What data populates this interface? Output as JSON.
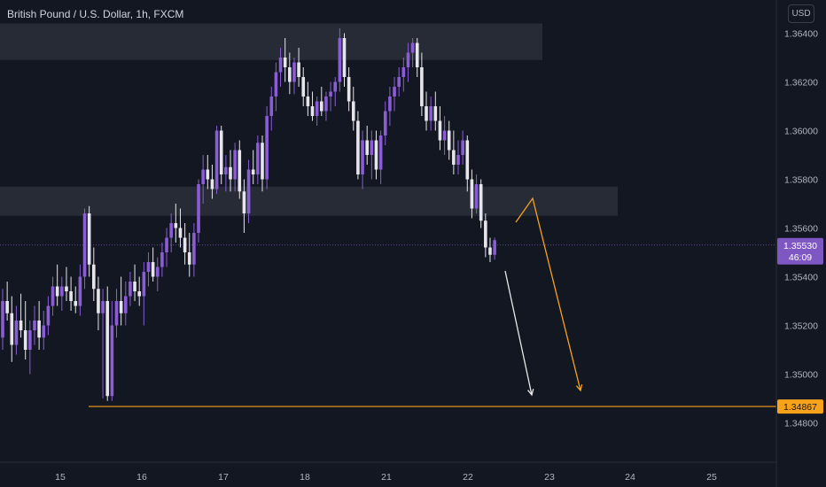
{
  "header": {
    "title": "British Pound / U.S. Dollar, 1h, FXCM",
    "currency": "USD"
  },
  "colors": {
    "background": "#131722",
    "bull": "#8a5cd6",
    "bear": "#e6e6ea",
    "zone": "#2a2e39",
    "target_line": "#f7a21b",
    "price_label": "#7e57c2",
    "white_arrow": "#e8e8e8",
    "orange_arrow": "#f7a21b"
  },
  "chart_data": {
    "type": "candlestick",
    "symbol": "British Pound / U.S. Dollar",
    "interval": "1h",
    "source": "FXCM",
    "y_ticks": [
      1.364,
      1.362,
      1.36,
      1.358,
      1.356,
      1.354,
      1.352,
      1.35,
      1.348
    ],
    "y_tick_labels": [
      "1.36400",
      "1.36200",
      "1.36000",
      "1.35800",
      "1.35600",
      "1.35400",
      "1.35200",
      "1.35000",
      "1.34800"
    ],
    "x_tick_labels": [
      "15",
      "16",
      "17",
      "18",
      "21",
      "22",
      "23",
      "24",
      "25"
    ],
    "current_price": {
      "price": 1.3553,
      "label": "1.35530",
      "countdown": "46:09"
    },
    "target_level": {
      "price": 1.34867,
      "label": "1.34867"
    },
    "zones": [
      {
        "name": "upper-resistance-zone",
        "from": 1.3629,
        "to": 1.3644
      },
      {
        "name": "lower-supply-zone",
        "from": 1.3565,
        "to": 1.3577
      }
    ],
    "candles": [
      [
        1.3515,
        1.3535,
        1.351,
        1.353
      ],
      [
        1.353,
        1.3538,
        1.3522,
        1.3525
      ],
      [
        1.3525,
        1.3532,
        1.3505,
        1.3512
      ],
      [
        1.3512,
        1.3528,
        1.3508,
        1.3522
      ],
      [
        1.3522,
        1.3533,
        1.3515,
        1.3518
      ],
      [
        1.3518,
        1.353,
        1.3506,
        1.351
      ],
      [
        1.351,
        1.3522,
        1.35,
        1.3518
      ],
      [
        1.3518,
        1.3528,
        1.3512,
        1.3522
      ],
      [
        1.3522,
        1.353,
        1.351,
        1.3515
      ],
      [
        1.3515,
        1.3526,
        1.351,
        1.352
      ],
      [
        1.352,
        1.3532,
        1.3516,
        1.3528
      ],
      [
        1.3528,
        1.354,
        1.3524,
        1.3536
      ],
      [
        1.3536,
        1.3545,
        1.3528,
        1.3532
      ],
      [
        1.3532,
        1.354,
        1.3526,
        1.3536
      ],
      [
        1.3536,
        1.3544,
        1.353,
        1.3534
      ],
      [
        1.3534,
        1.354,
        1.3526,
        1.353
      ],
      [
        1.353,
        1.3536,
        1.3525,
        1.3528
      ],
      [
        1.3528,
        1.3545,
        1.3524,
        1.354
      ],
      [
        1.354,
        1.3568,
        1.3535,
        1.3566
      ],
      [
        1.3566,
        1.3569,
        1.354,
        1.3545
      ],
      [
        1.3545,
        1.3552,
        1.353,
        1.3535
      ],
      [
        1.3535,
        1.354,
        1.3518,
        1.3525
      ],
      [
        1.3525,
        1.3535,
        1.349,
        1.353
      ],
      [
        1.353,
        1.3536,
        1.3489,
        1.3491
      ],
      [
        1.3491,
        1.353,
        1.3489,
        1.352
      ],
      [
        1.352,
        1.3535,
        1.3515,
        1.353
      ],
      [
        1.353,
        1.354,
        1.352,
        1.3525
      ],
      [
        1.3525,
        1.3538,
        1.352,
        1.3532
      ],
      [
        1.3532,
        1.3542,
        1.3528,
        1.3538
      ],
      [
        1.3538,
        1.3545,
        1.353,
        1.3534
      ],
      [
        1.3534,
        1.354,
        1.3528,
        1.3532
      ],
      [
        1.3532,
        1.3546,
        1.352,
        1.3542
      ],
      [
        1.3542,
        1.355,
        1.3536,
        1.3546
      ],
      [
        1.3546,
        1.3552,
        1.3538,
        1.354
      ],
      [
        1.354,
        1.3548,
        1.3534,
        1.3544
      ],
      [
        1.3544,
        1.3554,
        1.354,
        1.355
      ],
      [
        1.355,
        1.356,
        1.3544,
        1.3556
      ],
      [
        1.3556,
        1.3566,
        1.355,
        1.3562
      ],
      [
        1.3562,
        1.357,
        1.3554,
        1.356
      ],
      [
        1.356,
        1.3568,
        1.3552,
        1.3556
      ],
      [
        1.3556,
        1.3562,
        1.3545,
        1.355
      ],
      [
        1.355,
        1.3558,
        1.354,
        1.3545
      ],
      [
        1.3545,
        1.3562,
        1.354,
        1.3558
      ],
      [
        1.3558,
        1.358,
        1.3554,
        1.3578
      ],
      [
        1.3578,
        1.359,
        1.357,
        1.3584
      ],
      [
        1.3584,
        1.359,
        1.3576,
        1.358
      ],
      [
        1.358,
        1.3586,
        1.3572,
        1.3576
      ],
      [
        1.3576,
        1.3602,
        1.3574,
        1.36
      ],
      [
        1.36,
        1.3602,
        1.3578,
        1.3582
      ],
      [
        1.3582,
        1.359,
        1.3575,
        1.3585
      ],
      [
        1.3585,
        1.3592,
        1.3575,
        1.358
      ],
      [
        1.358,
        1.3595,
        1.3575,
        1.3592
      ],
      [
        1.3592,
        1.3596,
        1.3572,
        1.3575
      ],
      [
        1.3575,
        1.358,
        1.3558,
        1.3566
      ],
      [
        1.3566,
        1.3588,
        1.3562,
        1.3584
      ],
      [
        1.3584,
        1.3592,
        1.3578,
        1.3582
      ],
      [
        1.3582,
        1.3598,
        1.3578,
        1.3595
      ],
      [
        1.3595,
        1.3598,
        1.3575,
        1.358
      ],
      [
        1.358,
        1.361,
        1.3576,
        1.3606
      ],
      [
        1.3606,
        1.3618,
        1.36,
        1.3614
      ],
      [
        1.3614,
        1.3628,
        1.3608,
        1.3624
      ],
      [
        1.3624,
        1.3634,
        1.3618,
        1.363
      ],
      [
        1.363,
        1.3638,
        1.362,
        1.3626
      ],
      [
        1.3626,
        1.3632,
        1.3615,
        1.362
      ],
      [
        1.362,
        1.363,
        1.3615,
        1.3628
      ],
      [
        1.3628,
        1.3634,
        1.3618,
        1.3622
      ],
      [
        1.3622,
        1.3626,
        1.361,
        1.3614
      ],
      [
        1.3614,
        1.362,
        1.3606,
        1.361
      ],
      [
        1.361,
        1.3616,
        1.3604,
        1.3606
      ],
      [
        1.3606,
        1.3614,
        1.3602,
        1.3612
      ],
      [
        1.3612,
        1.3618,
        1.3606,
        1.3608
      ],
      [
        1.3608,
        1.3616,
        1.3604,
        1.3614
      ],
      [
        1.3614,
        1.362,
        1.3608,
        1.3616
      ],
      [
        1.3616,
        1.3622,
        1.361,
        1.362
      ],
      [
        1.362,
        1.3642,
        1.3616,
        1.3638
      ],
      [
        1.3638,
        1.364,
        1.3618,
        1.3622
      ],
      [
        1.3622,
        1.3626,
        1.3608,
        1.3612
      ],
      [
        1.3612,
        1.3618,
        1.36,
        1.3604
      ],
      [
        1.3604,
        1.3608,
        1.358,
        1.3582
      ],
      [
        1.3582,
        1.36,
        1.3576,
        1.3596
      ],
      [
        1.3596,
        1.3602,
        1.3586,
        1.359
      ],
      [
        1.359,
        1.36,
        1.358,
        1.3596
      ],
      [
        1.3596,
        1.36,
        1.358,
        1.3584
      ],
      [
        1.3584,
        1.36,
        1.3578,
        1.3598
      ],
      [
        1.3598,
        1.3612,
        1.3594,
        1.3608
      ],
      [
        1.3608,
        1.3618,
        1.3602,
        1.3614
      ],
      [
        1.3614,
        1.3622,
        1.3608,
        1.3618
      ],
      [
        1.3618,
        1.3626,
        1.3614,
        1.3622
      ],
      [
        1.3622,
        1.363,
        1.3616,
        1.3626
      ],
      [
        1.3626,
        1.3636,
        1.362,
        1.3632
      ],
      [
        1.3632,
        1.3638,
        1.3626,
        1.3636
      ],
      [
        1.3636,
        1.3638,
        1.3622,
        1.3626
      ],
      [
        1.3626,
        1.3632,
        1.3606,
        1.361
      ],
      [
        1.361,
        1.3616,
        1.36,
        1.3604
      ],
      [
        1.3604,
        1.3614,
        1.36,
        1.361
      ],
      [
        1.361,
        1.3616,
        1.36,
        1.3604
      ],
      [
        1.3604,
        1.361,
        1.3592,
        1.3596
      ],
      [
        1.3596,
        1.3606,
        1.359,
        1.36
      ],
      [
        1.36,
        1.3604,
        1.3588,
        1.3592
      ],
      [
        1.3592,
        1.36,
        1.3582,
        1.3586
      ],
      [
        1.3586,
        1.3596,
        1.3582,
        1.359
      ],
      [
        1.359,
        1.36,
        1.3586,
        1.3596
      ],
      [
        1.3596,
        1.3598,
        1.3575,
        1.358
      ],
      [
        1.358,
        1.3584,
        1.3564,
        1.3568
      ],
      [
        1.3568,
        1.3582,
        1.3566,
        1.3578
      ],
      [
        1.3578,
        1.358,
        1.356,
        1.3563
      ],
      [
        1.3563,
        1.3566,
        1.3548,
        1.3552
      ],
      [
        1.3552,
        1.3556,
        1.3546,
        1.3549
      ],
      [
        1.3549,
        1.3556,
        1.3547,
        1.3555
      ]
    ]
  }
}
